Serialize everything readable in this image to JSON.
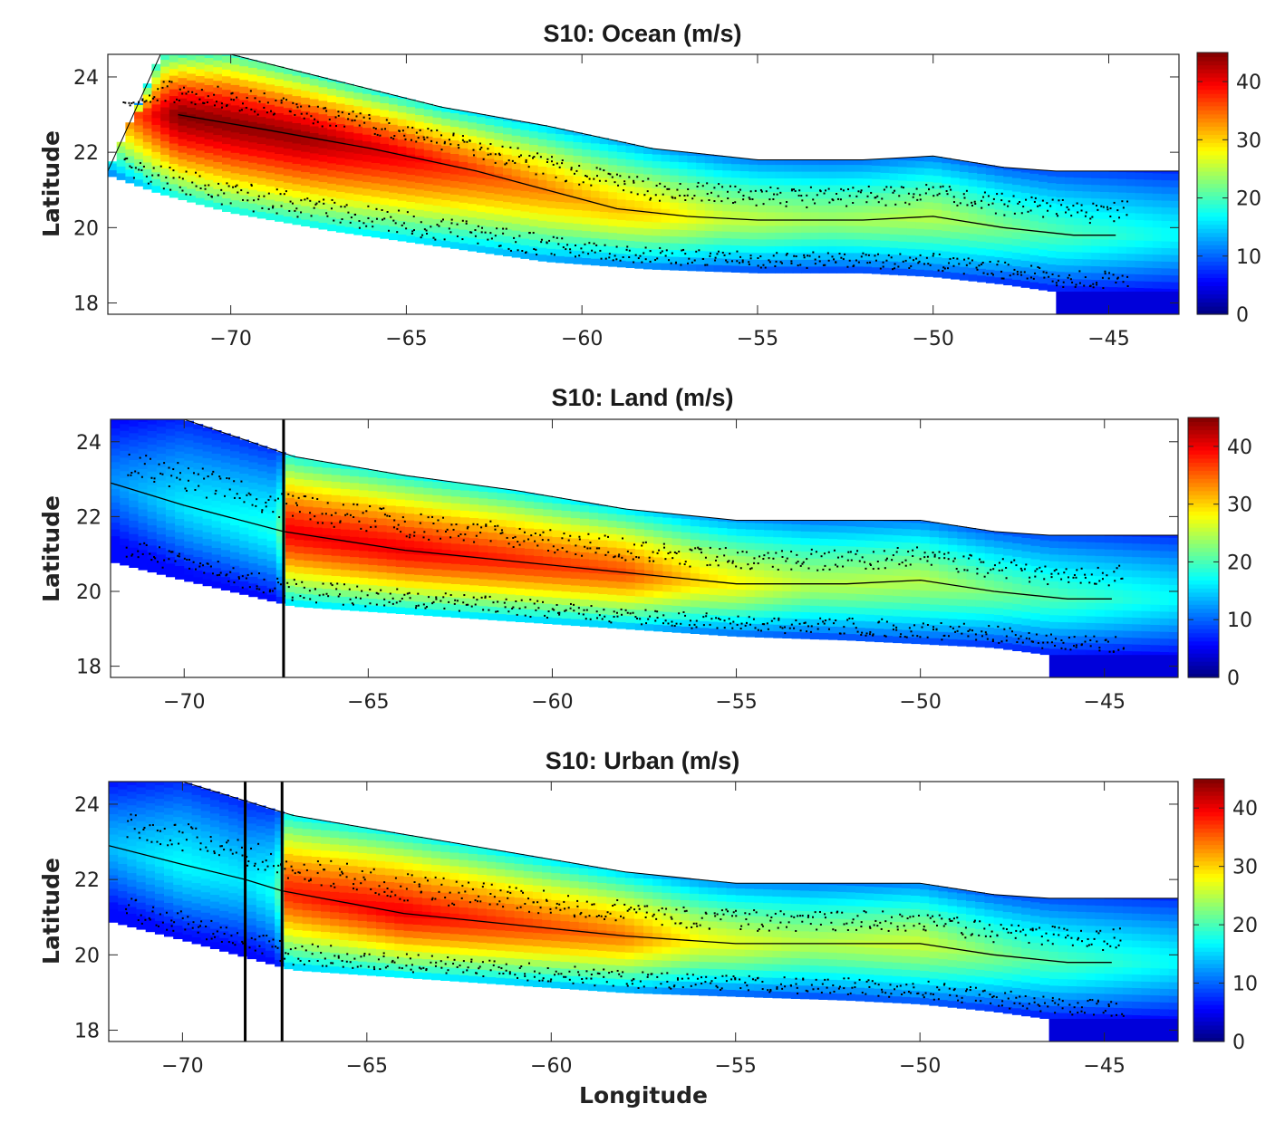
{
  "chart_data": [
    {
      "type": "heatmap",
      "title": "S10: Ocean (m/s)",
      "xlabel": "",
      "ylabel": "Latitude",
      "xlim": [
        -73.5,
        -43
      ],
      "ylim": [
        17.7,
        24.6
      ],
      "xticks": [
        -70,
        -65,
        -60,
        -55,
        -50,
        -45
      ],
      "yticks": [
        18,
        20,
        22,
        24
      ],
      "colorbar": {
        "min": 0,
        "max": 45,
        "ticks": [
          0,
          10,
          20,
          30,
          40
        ],
        "colormap": "jet"
      },
      "track": [
        [
          -71.5,
          23.0
        ],
        [
          -69,
          22.6
        ],
        [
          -66,
          22.1
        ],
        [
          -63,
          21.5
        ],
        [
          -61,
          21.0
        ],
        [
          -59,
          20.5
        ],
        [
          -57,
          20.3
        ],
        [
          -55,
          20.2
        ],
        [
          -52,
          20.2
        ],
        [
          -50,
          20.3
        ],
        [
          -48,
          20.0
        ],
        [
          -46,
          19.8
        ],
        [
          -44.8,
          19.8
        ]
      ],
      "swath_edge_lon": [
        -73.5,
        -72,
        -70,
        -67,
        -64,
        -61,
        -58,
        -55,
        -52,
        -50,
        -48,
        -46.5,
        -43
      ],
      "swath_north": [
        21.5,
        24.6,
        24.6,
        23.9,
        23.2,
        22.7,
        22.1,
        21.8,
        21.8,
        21.9,
        21.6,
        21.5,
        21.5
      ],
      "swath_south": [
        21.4,
        20.9,
        20.4,
        19.9,
        19.5,
        19.1,
        18.9,
        18.8,
        18.8,
        18.7,
        18.5,
        18.3,
        18.2
      ],
      "core_ridge_wind": [
        [
          -73.5,
          30
        ],
        [
          -71.5,
          45
        ],
        [
          -68,
          44
        ],
        [
          -65,
          40
        ],
        [
          -62,
          35
        ],
        [
          -60,
          32
        ],
        [
          -58,
          30
        ],
        [
          -56,
          26
        ],
        [
          -53,
          24
        ],
        [
          -50,
          25
        ],
        [
          -47,
          21
        ],
        [
          -43,
          17
        ]
      ],
      "cutoff_lines_lon": []
    },
    {
      "type": "heatmap",
      "title": "S10: Land (m/s)",
      "xlabel": "",
      "ylabel": "Latitude",
      "xlim": [
        -72.0,
        -43
      ],
      "ylim": [
        17.7,
        24.6
      ],
      "xticks": [
        -70,
        -65,
        -60,
        -55,
        -50,
        -45
      ],
      "yticks": [
        18,
        20,
        22,
        24
      ],
      "colorbar": {
        "min": 0,
        "max": 45,
        "ticks": [
          0,
          10,
          20,
          30,
          40
        ],
        "colormap": "jet"
      },
      "track": [
        [
          -72,
          22.9
        ],
        [
          -70,
          22.3
        ],
        [
          -67.3,
          21.6
        ],
        [
          -64,
          21.1
        ],
        [
          -61,
          20.8
        ],
        [
          -58,
          20.5
        ],
        [
          -55,
          20.2
        ],
        [
          -52,
          20.2
        ],
        [
          -50,
          20.3
        ],
        [
          -48,
          20.0
        ],
        [
          -46,
          19.8
        ],
        [
          -44.8,
          19.8
        ]
      ],
      "swath_edge_lon": [
        -72,
        -70,
        -67,
        -64,
        -61,
        -58,
        -55,
        -52,
        -50,
        -48,
        -46.5,
        -43
      ],
      "swath_north": [
        24.6,
        24.6,
        23.6,
        23.1,
        22.7,
        22.2,
        21.9,
        21.9,
        21.9,
        21.6,
        21.5,
        21.5
      ],
      "swath_south": [
        20.8,
        20.3,
        19.6,
        19.4,
        19.2,
        19.0,
        18.8,
        18.7,
        18.6,
        18.5,
        18.3,
        18.2
      ],
      "core_ridge_wind": [
        [
          -72,
          12
        ],
        [
          -70,
          16
        ],
        [
          -67.4,
          18
        ],
        [
          -67.2,
          40
        ],
        [
          -64,
          40
        ],
        [
          -61,
          38
        ],
        [
          -58,
          36
        ],
        [
          -56,
          30
        ],
        [
          -53,
          25
        ],
        [
          -50,
          25
        ],
        [
          -47,
          21
        ],
        [
          -43,
          17
        ]
      ],
      "cutoff_lines_lon": [
        -67.3
      ]
    },
    {
      "type": "heatmap",
      "title": "S10: Urban (m/s)",
      "xlabel": "Longitude",
      "ylabel": "Latitude",
      "xlim": [
        -72.0,
        -43
      ],
      "ylim": [
        17.7,
        24.6
      ],
      "xticks": [
        -70,
        -65,
        -60,
        -55,
        -50,
        -45
      ],
      "yticks": [
        18,
        20,
        22,
        24
      ],
      "colorbar": {
        "min": 0,
        "max": 45,
        "ticks": [
          0,
          10,
          20,
          30,
          40
        ],
        "colormap": "jet"
      },
      "track": [
        [
          -72,
          22.9
        ],
        [
          -70,
          22.4
        ],
        [
          -68.3,
          22.0
        ],
        [
          -67.3,
          21.7
        ],
        [
          -64,
          21.1
        ],
        [
          -61,
          20.8
        ],
        [
          -58,
          20.5
        ],
        [
          -55,
          20.3
        ],
        [
          -52,
          20.3
        ],
        [
          -50,
          20.3
        ],
        [
          -48,
          20.0
        ],
        [
          -46,
          19.8
        ],
        [
          -44.8,
          19.8
        ]
      ],
      "swath_edge_lon": [
        -72,
        -70,
        -67,
        -64,
        -61,
        -58,
        -55,
        -52,
        -50,
        -48,
        -46.5,
        -43
      ],
      "swath_north": [
        24.6,
        24.6,
        23.7,
        23.2,
        22.7,
        22.2,
        21.9,
        21.9,
        21.9,
        21.6,
        21.5,
        21.5
      ],
      "swath_south": [
        20.9,
        20.4,
        19.6,
        19.4,
        19.2,
        19.0,
        18.9,
        18.8,
        18.7,
        18.5,
        18.3,
        18.2
      ],
      "core_ridge_wind": [
        [
          -72,
          14
        ],
        [
          -70,
          17
        ],
        [
          -68.3,
          16
        ],
        [
          -67.4,
          18
        ],
        [
          -67.2,
          38
        ],
        [
          -64,
          40
        ],
        [
          -61,
          37
        ],
        [
          -58,
          34
        ],
        [
          -56,
          28
        ],
        [
          -53,
          25
        ],
        [
          -50,
          26
        ],
        [
          -47,
          21
        ],
        [
          -43,
          17
        ]
      ],
      "cutoff_lines_lon": [
        -68.3,
        -67.3
      ]
    }
  ],
  "colors": {
    "background": "#ffffff",
    "axis": "#262626",
    "track": "#000000",
    "debris": "#000000"
  }
}
